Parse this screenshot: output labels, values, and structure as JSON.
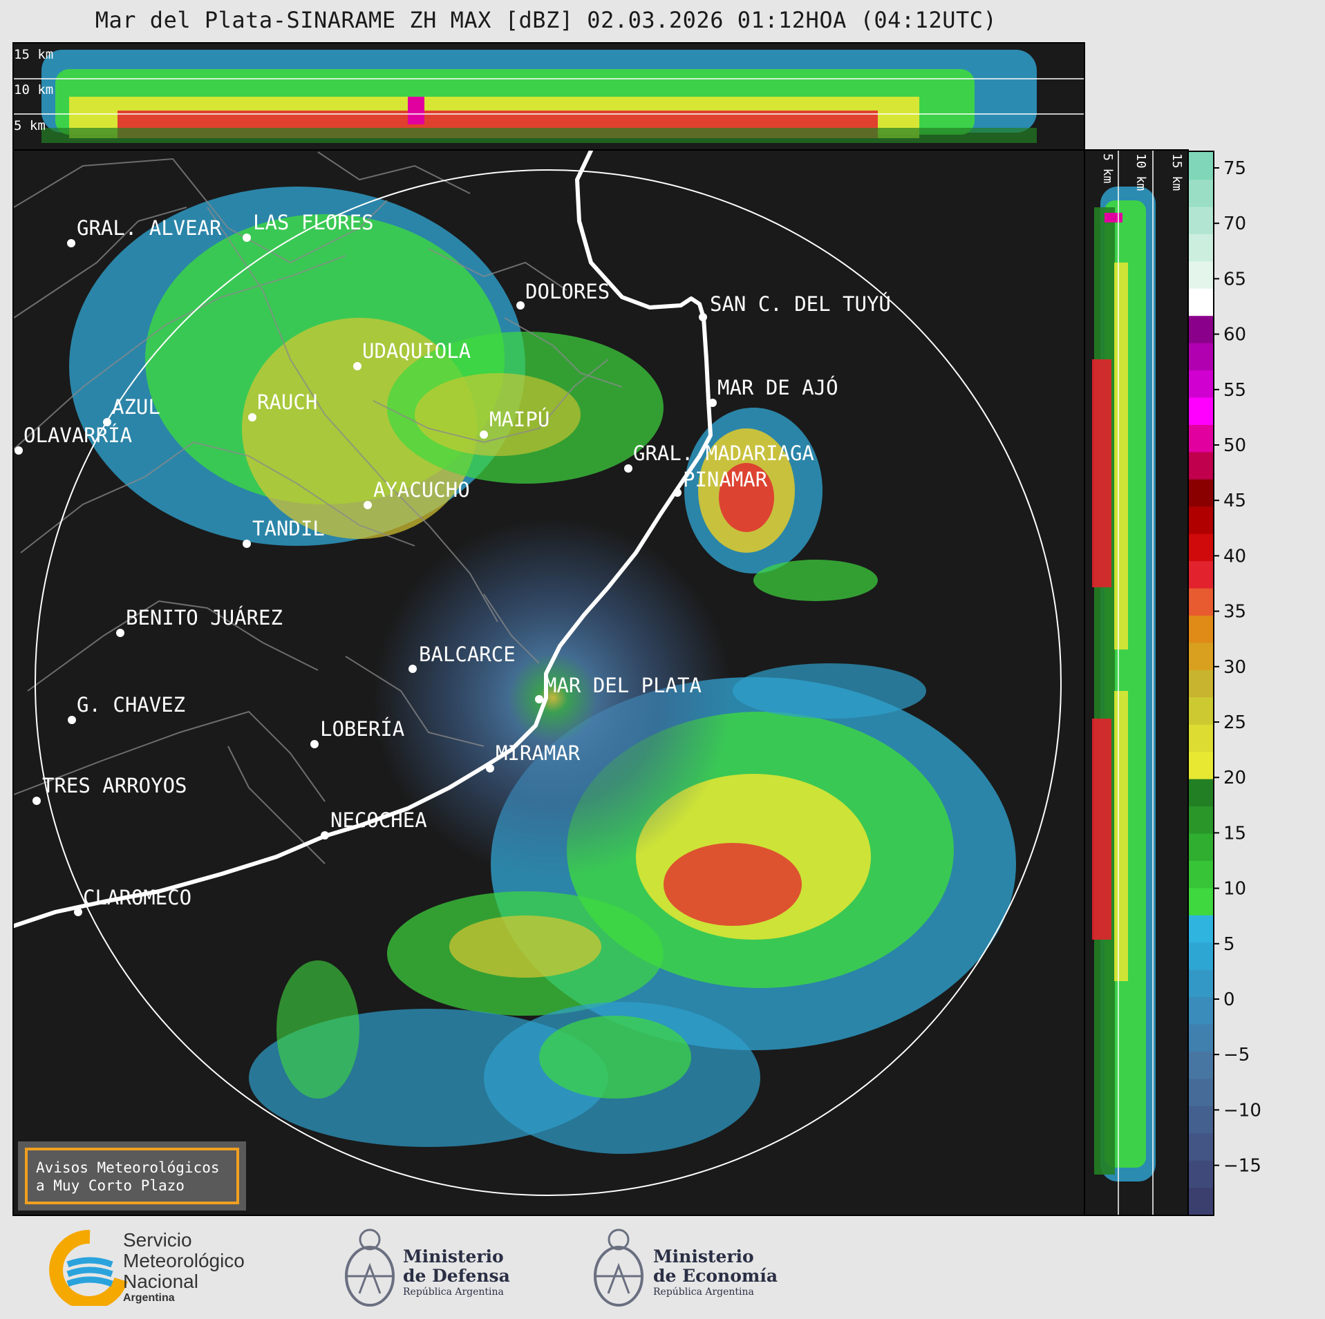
{
  "header": {
    "title": "Mar del Plata-SINARAME ZH MAX [dBZ] 02.03.2026 01:12HOA (04:12UTC)"
  },
  "top_cross_section": {
    "labels": [
      "15 km",
      "10 km",
      "5 km"
    ]
  },
  "side_cross_section": {
    "labels": [
      "5 km",
      "10 km",
      "15 km"
    ]
  },
  "colorbar": {
    "ticks": [
      "75",
      "70",
      "65",
      "60",
      "55",
      "50",
      "45",
      "40",
      "35",
      "30",
      "25",
      "20",
      "15",
      "10",
      "5",
      "0",
      "−5",
      "−10",
      "−15"
    ],
    "colors": [
      "#3b3f6e",
      "#3f4a7a",
      "#425584",
      "#44608e",
      "#466b98",
      "#4876a2",
      "#3f80ae",
      "#3a8cba",
      "#3398c6",
      "#2ea6d4",
      "#2fb4e0",
      "#3fd83f",
      "#37c437",
      "#30ae30",
      "#2a962a",
      "#237f23",
      "#e8e832",
      "#dcdc32",
      "#ccca30",
      "#c8b42e",
      "#d9a020",
      "#e08a18",
      "#e85a30",
      "#e2232e",
      "#d00a0a",
      "#b00000",
      "#8a0000",
      "#c0004d",
      "#e1009f",
      "#ff00ff",
      "#d000d0",
      "#b000b0",
      "#8a008a",
      "#ffffff",
      "#e4f6ec",
      "#cbeedf",
      "#b2e6d2",
      "#99dec5",
      "#80d6b8"
    ]
  },
  "map": {
    "cities": [
      "GRAL. ALVEAR",
      "LAS FLORES",
      "DOLORES",
      "SAN C. DEL TUYÚ",
      "UDAQUIOLA",
      "MAR DE AJÓ",
      "AZUL",
      "RAUCH",
      "MAIPÚ",
      "OLAVARRÍA",
      "GRAL. MADARIAGA",
      "PINAMAR",
      "AYACUCHO",
      "TANDIL",
      "BENITO JUÁREZ",
      "BALCARCE",
      "MAR DEL PLATA",
      "G. CHAVEZ",
      "LOBERÍA",
      "MIRAMAR",
      "TRES ARROYOS",
      "NECOCHEA",
      "CLAROMECO"
    ]
  },
  "notice": {
    "line1": "Avisos Meteorológicos",
    "line2": "a Muy Corto Plazo"
  },
  "logos": {
    "smn": {
      "l1": "Servicio",
      "l2": "Meteorológico",
      "l3": "Nacional",
      "l4": "Argentina"
    },
    "defensa": {
      "l1": "Ministerio",
      "l2": "de Defensa",
      "l3": "República Argentina"
    },
    "economia": {
      "l1": "Ministerio",
      "l2": "de Economía",
      "l3": "República Argentina"
    }
  },
  "style": {
    "background": "#e6e6e6",
    "panel": "#1a1a1a",
    "accent_notice": "#f0a020",
    "smn_blue": "#2aa3dc",
    "smn_orange": "#f5a800"
  }
}
